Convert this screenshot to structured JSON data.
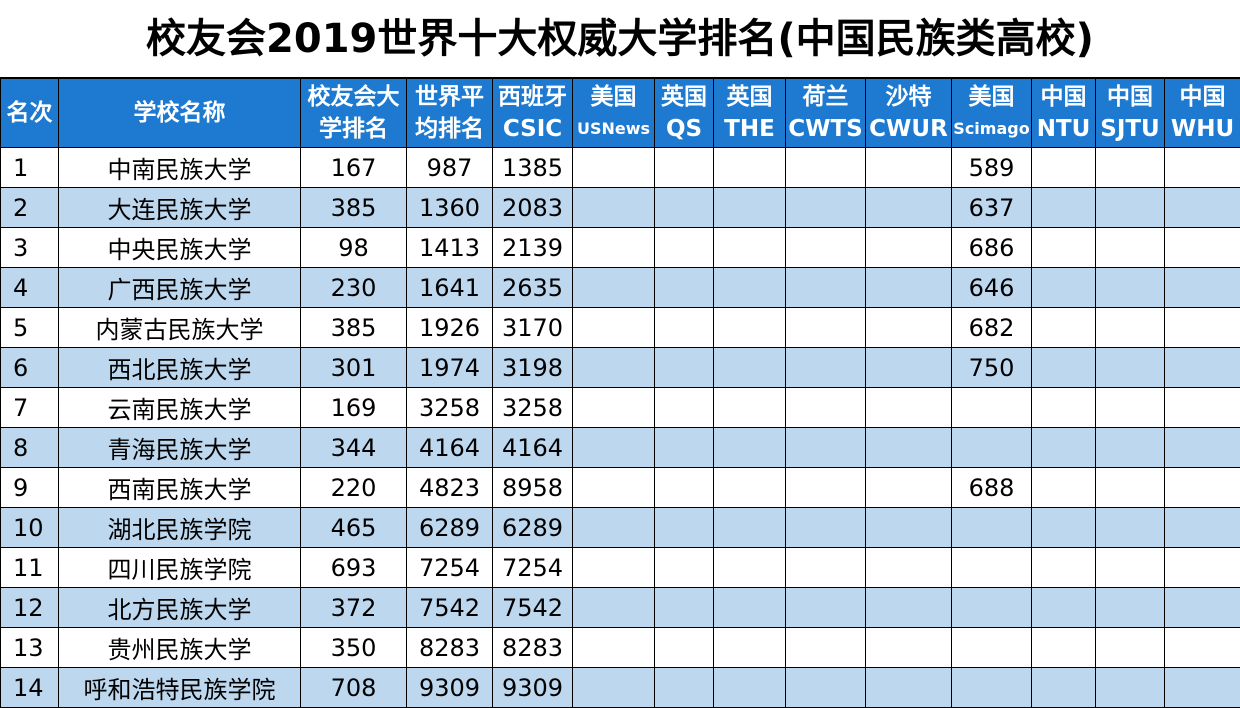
{
  "title": "校友会2019世界十大权威大学排名(中国民族类高校)",
  "headers": [
    {
      "l1": "名次",
      "l2": ""
    },
    {
      "l1": "学校名称",
      "l2": ""
    },
    {
      "l1": "校友会大",
      "l2": "学排名"
    },
    {
      "l1": "世界平",
      "l2": "均排名"
    },
    {
      "l1": "西班牙",
      "l2": "CSIC"
    },
    {
      "l1": "美国",
      "l2": "USNews"
    },
    {
      "l1": "英国",
      "l2": "QS"
    },
    {
      "l1": "英国",
      "l2": "THE"
    },
    {
      "l1": "荷兰",
      "l2": "CWTS"
    },
    {
      "l1": "沙特",
      "l2": "CWUR"
    },
    {
      "l1": "美国",
      "l2": "Scimago"
    },
    {
      "l1": "中国",
      "l2": "NTU"
    },
    {
      "l1": "中国",
      "l2": "SJTU"
    },
    {
      "l1": "中国",
      "l2": "WHU"
    }
  ],
  "rows": [
    [
      "1",
      "中南民族大学",
      "167",
      "987",
      "1385",
      "",
      "",
      "",
      "",
      "",
      "589",
      "",
      "",
      ""
    ],
    [
      "2",
      "大连民族大学",
      "385",
      "1360",
      "2083",
      "",
      "",
      "",
      "",
      "",
      "637",
      "",
      "",
      ""
    ],
    [
      "3",
      "中央民族大学",
      "98",
      "1413",
      "2139",
      "",
      "",
      "",
      "",
      "",
      "686",
      "",
      "",
      ""
    ],
    [
      "4",
      "广西民族大学",
      "230",
      "1641",
      "2635",
      "",
      "",
      "",
      "",
      "",
      "646",
      "",
      "",
      ""
    ],
    [
      "5",
      "内蒙古民族大学",
      "385",
      "1926",
      "3170",
      "",
      "",
      "",
      "",
      "",
      "682",
      "",
      "",
      ""
    ],
    [
      "6",
      "西北民族大学",
      "301",
      "1974",
      "3198",
      "",
      "",
      "",
      "",
      "",
      "750",
      "",
      "",
      ""
    ],
    [
      "7",
      "云南民族大学",
      "169",
      "3258",
      "3258",
      "",
      "",
      "",
      "",
      "",
      "",
      "",
      "",
      ""
    ],
    [
      "8",
      "青海民族大学",
      "344",
      "4164",
      "4164",
      "",
      "",
      "",
      "",
      "",
      "",
      "",
      "",
      ""
    ],
    [
      "9",
      "西南民族大学",
      "220",
      "4823",
      "8958",
      "",
      "",
      "",
      "",
      "",
      "688",
      "",
      "",
      ""
    ],
    [
      "10",
      "湖北民族学院",
      "465",
      "6289",
      "6289",
      "",
      "",
      "",
      "",
      "",
      "",
      "",
      "",
      ""
    ],
    [
      "11",
      "四川民族学院",
      "693",
      "7254",
      "7254",
      "",
      "",
      "",
      "",
      "",
      "",
      "",
      "",
      ""
    ],
    [
      "12",
      "北方民族大学",
      "372",
      "7542",
      "7542",
      "",
      "",
      "",
      "",
      "",
      "",
      "",
      "",
      ""
    ],
    [
      "13",
      "贵州民族大学",
      "350",
      "8283",
      "8283",
      "",
      "",
      "",
      "",
      "",
      "",
      "",
      "",
      ""
    ],
    [
      "14",
      "呼和浩特民族学院",
      "708",
      "9309",
      "9309",
      "",
      "",
      "",
      "",
      "",
      "",
      "",
      "",
      ""
    ]
  ],
  "colors": {
    "header_bg": "#1e7ad0",
    "header_text": "#ffffff",
    "band_row": "#bdd7ee",
    "plain_row": "#ffffff"
  }
}
